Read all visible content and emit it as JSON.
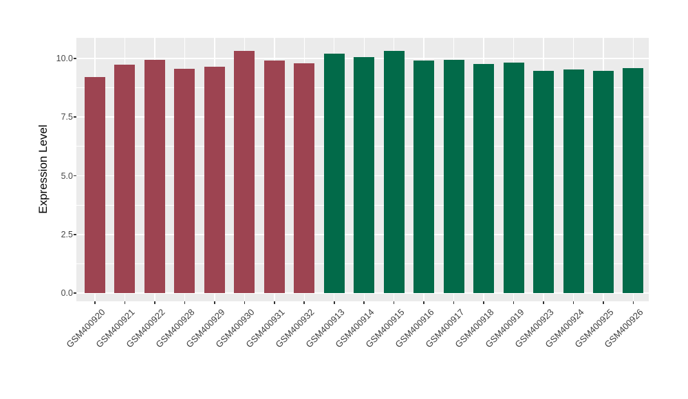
{
  "chart_data": {
    "type": "bar",
    "title": "",
    "xlabel": "",
    "ylabel": "Expression Level",
    "ylim": [
      0,
      10.88
    ],
    "yticks": [
      0,
      2.5,
      5,
      7.5,
      10
    ],
    "ytick_labels": [
      "0.0",
      "2.5",
      "5.0",
      "7.5",
      "10.0"
    ],
    "minor_yticks": [
      1.25,
      3.75,
      6.25,
      8.75
    ],
    "grid": "on",
    "legend_position": "none",
    "panel_background": "#EBEBEB",
    "grid_color": "#FFFFFF",
    "categories": [
      "GSM400920",
      "GSM400921",
      "GSM400922",
      "GSM400928",
      "GSM400929",
      "GSM400930",
      "GSM400931",
      "GSM400932",
      "GSM400913",
      "GSM400914",
      "GSM400915",
      "GSM400916",
      "GSM400917",
      "GSM400918",
      "GSM400919",
      "GSM400923",
      "GSM400924",
      "GSM400925",
      "GSM400926"
    ],
    "values": [
      9.22,
      9.73,
      9.93,
      9.56,
      9.66,
      10.32,
      9.91,
      9.79,
      10.2,
      10.05,
      10.32,
      9.9,
      9.93,
      9.77,
      9.83,
      9.48,
      9.54,
      9.46,
      9.58
    ],
    "groups": [
      "maroon",
      "maroon",
      "maroon",
      "maroon",
      "maroon",
      "maroon",
      "maroon",
      "maroon",
      "green",
      "green",
      "green",
      "green",
      "green",
      "green",
      "green",
      "green",
      "green",
      "green",
      "green"
    ],
    "group_colors": {
      "maroon": "#9D4451",
      "green": "#026A49"
    }
  }
}
